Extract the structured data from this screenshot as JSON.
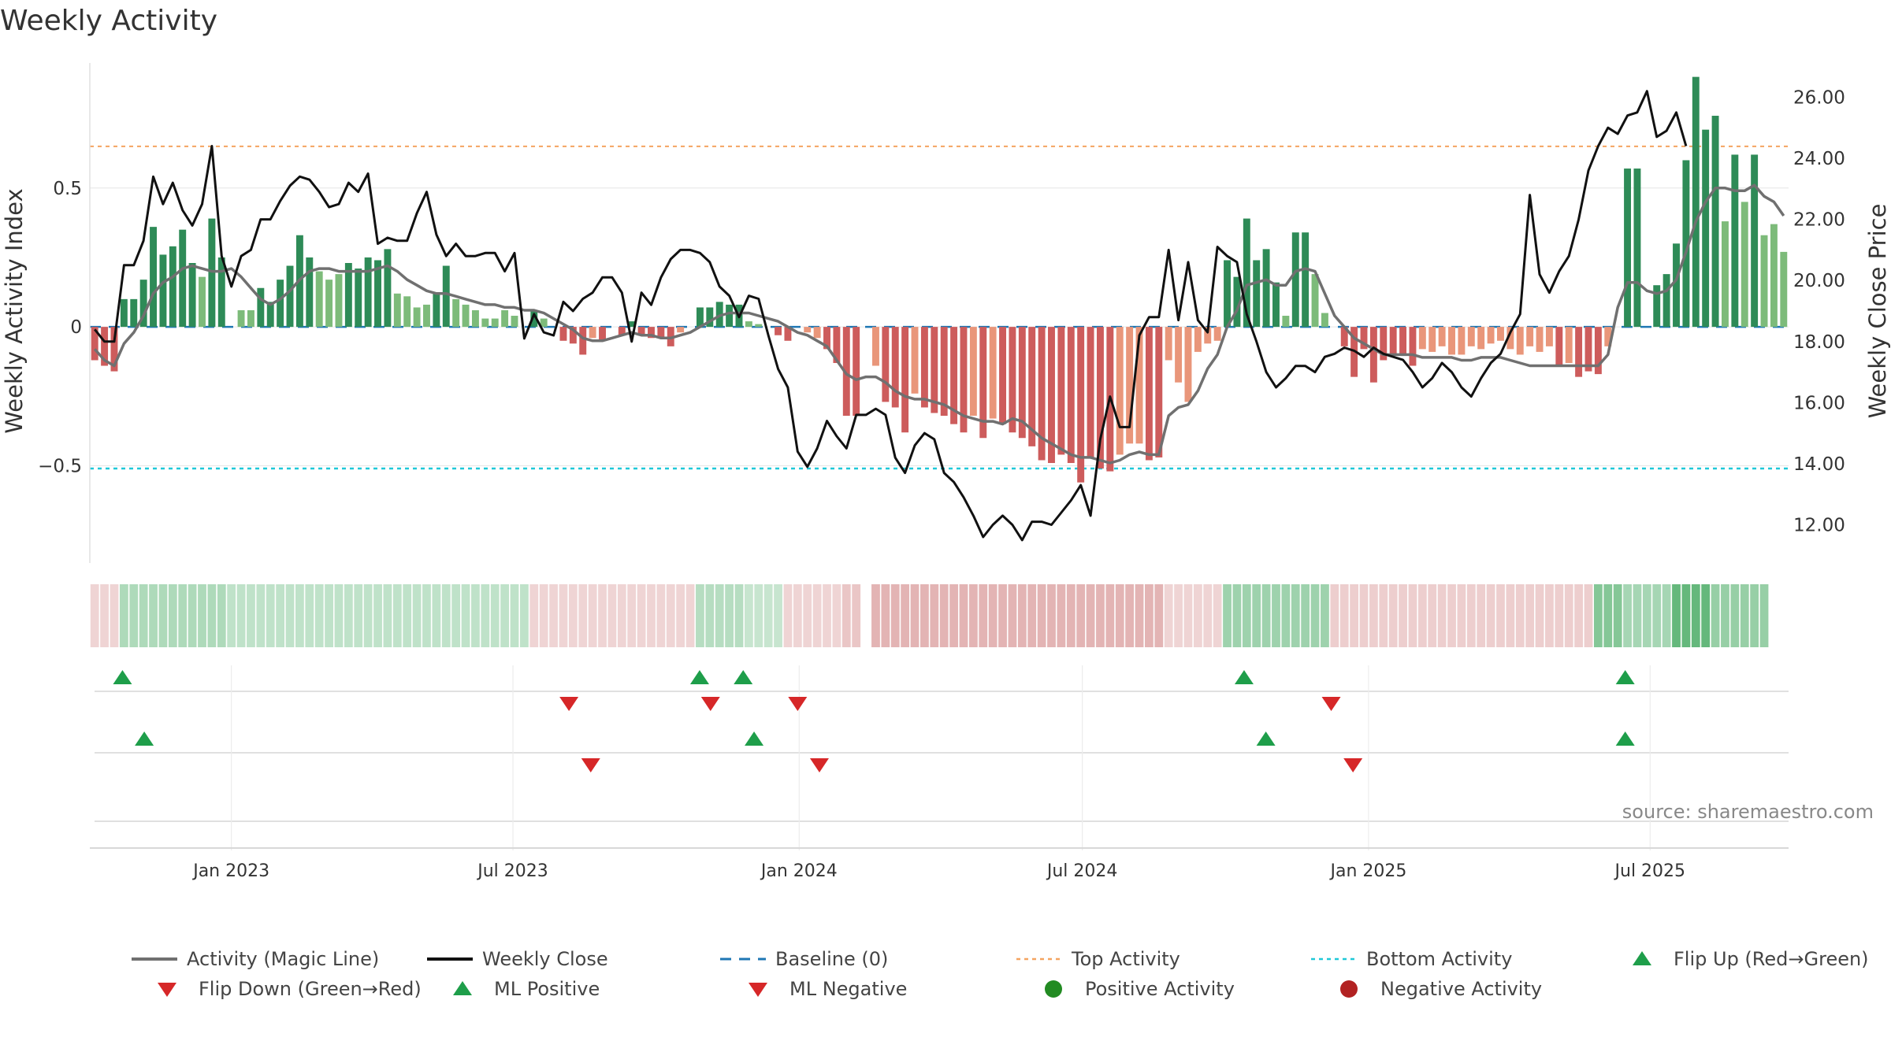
{
  "title": "Weekly Activity",
  "source": "source: sharemaestro.com",
  "colors": {
    "strong_green": "#2e8b57",
    "light_green": "#7dbb7a",
    "strong_red": "#cd5c5c",
    "light_red": "#e9967a",
    "magic_line": "#707070",
    "close_line": "#111111",
    "baseline": "#1f77b4",
    "top_line": "#f4a460",
    "bottom_line": "#1fc8d8",
    "flip_up": "#1e9e4a",
    "flip_down": "#d62728",
    "heat_green": "#3ea65b",
    "heat_red": "#c86a6a"
  },
  "legend": [
    {
      "label": "Activity (Magic Line)",
      "icon": "grey-line"
    },
    {
      "label": "Weekly Close",
      "icon": "black-line"
    },
    {
      "label": "Baseline (0)",
      "icon": "blue-dashed-line"
    },
    {
      "label": "Top Activity",
      "icon": "orange-dotted-line"
    },
    {
      "label": "Bottom Activity",
      "icon": "cyan-dotted-line"
    },
    {
      "label": "Flip Up (Red→Green)",
      "icon": "green-triangle-up"
    },
    {
      "label": "Flip Down (Green→Red)",
      "icon": "red-triangle-down"
    },
    {
      "label": "ML Positive",
      "icon": "green-triangle-up"
    },
    {
      "label": "ML Negative",
      "icon": "red-triangle-down"
    },
    {
      "label": "Positive Activity",
      "icon": "green-circle"
    },
    {
      "label": "Negative Activity",
      "icon": "red-circle"
    }
  ],
  "chart_data": {
    "type": "bar",
    "xlabel": "",
    "ylabel": "Weekly Activity Index",
    "y2label": "Weekly Close Price",
    "ylim": [
      -0.85,
      0.95
    ],
    "y2lim": [
      10.75,
      27.12
    ],
    "yticks": [
      {
        "label": "0.5",
        "value": 0.5
      },
      {
        "label": "0",
        "value": 0
      },
      {
        "label": "−0.5",
        "value": -0.5
      }
    ],
    "y2ticks": [
      {
        "label": "12.00",
        "value": 12
      },
      {
        "label": "14.00",
        "value": 14
      },
      {
        "label": "16.00",
        "value": 16
      },
      {
        "label": "18.00",
        "value": 18
      },
      {
        "label": "20.00",
        "value": 20
      },
      {
        "label": "22.00",
        "value": 22
      },
      {
        "label": "24.00",
        "value": 24
      },
      {
        "label": "26.00",
        "value": 26
      }
    ],
    "x_start": "2022-10-02",
    "x_end": "2025-09-28",
    "xticks": [
      {
        "label": "Jan 2023",
        "date": "2023-01-01"
      },
      {
        "label": "Jul 2023",
        "date": "2023-07-01"
      },
      {
        "label": "Jan 2024",
        "date": "2024-01-01"
      },
      {
        "label": "Jul 2024",
        "date": "2024-07-01"
      },
      {
        "label": "Jan 2025",
        "date": "2025-01-01"
      },
      {
        "label": "Jul 2025",
        "date": "2025-07-01"
      }
    ],
    "top_activity": 0.65,
    "bottom_activity": -0.51,
    "baseline": 0,
    "grid": "horizontal",
    "legend_position": "bottom",
    "series": [
      {
        "name": "Weekly Activity Index",
        "kind": "bar",
        "values": [
          -0.12,
          -0.14,
          -0.16,
          0.1,
          0.1,
          0.17,
          0.36,
          0.26,
          0.29,
          0.35,
          0.23,
          0.18,
          0.39,
          0.25,
          0,
          0.06,
          0.06,
          0.14,
          0.09,
          0.17,
          0.22,
          0.33,
          0.25,
          0.2,
          0.17,
          0.19,
          0.23,
          0.21,
          0.25,
          0.24,
          0.28,
          0.12,
          0.11,
          0.07,
          0.08,
          0.12,
          0.22,
          0.1,
          0.08,
          0.06,
          0.03,
          0.03,
          0.06,
          0.04,
          0,
          0.06,
          0.03,
          0,
          -0.05,
          -0.06,
          -0.1,
          -0.04,
          -0.05,
          0,
          -0.03,
          0.02,
          -0.03,
          -0.04,
          -0.04,
          -0.07,
          -0.02,
          0,
          0.07,
          0.07,
          0.09,
          0.08,
          0.08,
          0.02,
          0.01,
          0,
          -0.03,
          -0.05,
          0,
          -0.02,
          -0.04,
          -0.08,
          -0.13,
          -0.32,
          -0.32,
          0,
          -0.14,
          -0.27,
          -0.29,
          -0.38,
          -0.24,
          -0.29,
          -0.31,
          -0.32,
          -0.35,
          -0.38,
          -0.32,
          -0.4,
          -0.33,
          -0.35,
          -0.38,
          -0.4,
          -0.43,
          -0.48,
          -0.49,
          -0.46,
          -0.49,
          -0.56,
          -0.47,
          -0.51,
          -0.52,
          -0.46,
          -0.42,
          -0.42,
          -0.48,
          -0.47,
          -0.12,
          -0.2,
          -0.27,
          -0.09,
          -0.06,
          -0.05,
          0.24,
          0.18,
          0.39,
          0.24,
          0.28,
          0.16,
          0.04,
          0.34,
          0.34,
          0.19,
          0.05,
          0,
          -0.07,
          -0.18,
          -0.08,
          -0.2,
          -0.12,
          -0.1,
          -0.1,
          -0.14,
          -0.08,
          -0.09,
          -0.07,
          -0.1,
          -0.1,
          -0.07,
          -0.08,
          -0.06,
          -0.05,
          -0.08,
          -0.1,
          -0.07,
          -0.09,
          -0.07,
          -0.14,
          -0.13,
          -0.18,
          -0.16,
          -0.17,
          -0.07,
          0,
          0.57,
          0.57,
          0,
          0.15,
          0.19,
          0.3,
          0.6,
          0.9,
          0.71,
          0.76,
          0.38,
          0.62,
          0.45,
          0.62,
          0.33,
          0.37,
          0.27
        ]
      },
      {
        "name": "Activity (Magic Line)",
        "kind": "line",
        "values": [
          -0.08,
          -0.12,
          -0.14,
          -0.06,
          -0.02,
          0.04,
          0.12,
          0.16,
          0.18,
          0.21,
          0.22,
          0.21,
          0.2,
          0.2,
          0.21,
          0.18,
          0.14,
          0.1,
          0.08,
          0.1,
          0.13,
          0.17,
          0.2,
          0.21,
          0.21,
          0.2,
          0.2,
          0.2,
          0.2,
          0.21,
          0.22,
          0.2,
          0.17,
          0.15,
          0.13,
          0.12,
          0.12,
          0.11,
          0.1,
          0.09,
          0.08,
          0.08,
          0.07,
          0.07,
          0.06,
          0.06,
          0.05,
          0.03,
          0.01,
          -0.01,
          -0.04,
          -0.05,
          -0.05,
          -0.04,
          -0.03,
          -0.02,
          -0.03,
          -0.03,
          -0.04,
          -0.04,
          -0.03,
          -0.02,
          0,
          0.02,
          0.04,
          0.05,
          0.05,
          0.05,
          0.04,
          0.03,
          0.02,
          0,
          -0.02,
          -0.03,
          -0.05,
          -0.07,
          -0.12,
          -0.17,
          -0.19,
          -0.18,
          -0.18,
          -0.2,
          -0.23,
          -0.25,
          -0.26,
          -0.26,
          -0.27,
          -0.28,
          -0.3,
          -0.32,
          -0.33,
          -0.34,
          -0.34,
          -0.35,
          -0.33,
          -0.34,
          -0.37,
          -0.4,
          -0.42,
          -0.44,
          -0.46,
          -0.47,
          -0.47,
          -0.48,
          -0.49,
          -0.48,
          -0.46,
          -0.45,
          -0.46,
          -0.46,
          -0.32,
          -0.29,
          -0.28,
          -0.23,
          -0.15,
          -0.1,
          0,
          0.06,
          0.15,
          0.16,
          0.17,
          0.15,
          0.15,
          0.2,
          0.21,
          0.2,
          0.12,
          0.04,
          0,
          -0.04,
          -0.06,
          -0.08,
          -0.1,
          -0.1,
          -0.1,
          -0.1,
          -0.11,
          -0.11,
          -0.11,
          -0.11,
          -0.12,
          -0.12,
          -0.11,
          -0.11,
          -0.11,
          -0.12,
          -0.13,
          -0.14,
          -0.14,
          -0.14,
          -0.14,
          -0.14,
          -0.14,
          -0.14,
          -0.14,
          -0.1,
          0.07,
          0.16,
          0.16,
          0.13,
          0.12,
          0.13,
          0.17,
          0.27,
          0.38,
          0.45,
          0.5,
          0.5,
          0.49,
          0.49,
          0.51,
          0.47,
          0.45,
          0.4
        ]
      },
      {
        "name": "Weekly Close",
        "kind": "line",
        "axis": "right",
        "values": [
          18.4,
          18.0,
          18.0,
          20.5,
          20.5,
          21.3,
          23.4,
          22.5,
          23.2,
          22.3,
          21.8,
          22.5,
          24.4,
          20.8,
          19.8,
          20.8,
          21.0,
          22.0,
          22.0,
          22.6,
          23.1,
          23.4,
          23.3,
          22.9,
          22.4,
          22.5,
          23.2,
          22.9,
          23.5,
          21.2,
          21.4,
          21.3,
          21.3,
          22.2,
          22.9,
          21.5,
          20.8,
          21.2,
          20.8,
          20.8,
          20.9,
          20.9,
          20.3,
          20.9,
          18.1,
          18.9,
          18.3,
          18.2,
          19.3,
          19.0,
          19.4,
          19.6,
          20.1,
          20.1,
          19.6,
          18.0,
          19.6,
          19.2,
          20.1,
          20.7,
          21.0,
          21.0,
          20.9,
          20.6,
          19.8,
          19.5,
          18.8,
          19.5,
          19.4,
          18.2,
          17.1,
          16.5,
          14.4,
          13.9,
          14.5,
          15.4,
          14.9,
          14.5,
          15.6,
          15.6,
          15.8,
          15.6,
          14.2,
          13.7,
          14.6,
          15.0,
          14.8,
          13.7,
          13.4,
          12.9,
          12.3,
          11.6,
          12.0,
          12.3,
          12.0,
          11.5,
          12.1,
          12.1,
          12.0,
          12.4,
          12.8,
          13.3,
          12.3,
          14.8,
          16.2,
          15.2,
          15.2,
          18.2,
          18.8,
          18.8,
          21.0,
          18.7,
          20.6,
          18.7,
          18.3,
          21.1,
          20.8,
          20.6,
          18.9,
          18.0,
          17.0,
          16.5,
          16.8,
          17.2,
          17.2,
          17.0,
          17.5,
          17.6,
          17.8,
          17.7,
          17.5,
          17.8,
          17.6,
          17.5,
          17.4,
          17.0,
          16.5,
          16.8,
          17.3,
          17.0,
          16.5,
          16.2,
          16.8,
          17.3,
          17.6,
          18.3,
          18.9,
          22.8,
          20.2,
          19.6,
          20.3,
          20.8,
          22.0,
          23.6,
          24.4,
          25.0,
          24.8,
          25.4,
          25.5,
          26.2,
          24.7,
          24.9,
          25.5,
          24.4
        ]
      }
    ],
    "flip_up_markers": [
      "2022-10-23",
      "2023-10-29",
      "2023-11-26",
      "2024-10-13",
      "2025-06-15"
    ],
    "flip_down_markers": [
      "2023-08-06",
      "2023-11-05",
      "2023-12-31",
      "2024-12-08"
    ],
    "ml_positive_markers": [
      "2022-11-06",
      "2023-12-03",
      "2024-10-27",
      "2025-06-15"
    ],
    "ml_negative_markers": [
      "2023-08-20",
      "2024-01-14",
      "2024-12-22"
    ],
    "heat_strip": {
      "name": "Activity Heat Strip",
      "levels": [
        -0.2,
        -0.2,
        -0.2,
        0.35,
        0.35,
        0.35,
        0.35,
        0.35,
        0.35,
        0.35,
        0.35,
        0.35,
        0.35,
        0.35,
        0.25,
        0.25,
        0.25,
        0.25,
        0.25,
        0.25,
        0.25,
        0.25,
        0.25,
        0.25,
        0.25,
        0.25,
        0.25,
        0.25,
        0.25,
        0.25,
        0.25,
        0.25,
        0.25,
        0.25,
        0.25,
        0.25,
        0.25,
        0.25,
        0.25,
        0.25,
        0.25,
        0.25,
        0.25,
        0.25,
        0.25,
        -0.2,
        -0.2,
        -0.2,
        -0.2,
        -0.2,
        -0.2,
        -0.2,
        -0.2,
        -0.2,
        -0.2,
        -0.2,
        -0.2,
        -0.2,
        -0.2,
        -0.2,
        -0.2,
        -0.2,
        0.3,
        0.3,
        0.3,
        0.3,
        0.3,
        0.2,
        0.2,
        0.2,
        0.2,
        -0.2,
        -0.2,
        -0.2,
        -0.2,
        -0.2,
        -0.2,
        -0.3,
        -0.3,
        0,
        -0.45,
        -0.45,
        -0.45,
        -0.45,
        -0.45,
        -0.45,
        -0.45,
        -0.45,
        -0.45,
        -0.45,
        -0.45,
        -0.45,
        -0.45,
        -0.45,
        -0.45,
        -0.45,
        -0.45,
        -0.45,
        -0.45,
        -0.45,
        -0.45,
        -0.45,
        -0.45,
        -0.45,
        -0.45,
        -0.45,
        -0.45,
        -0.45,
        -0.45,
        -0.45,
        -0.2,
        -0.2,
        -0.2,
        -0.2,
        -0.2,
        -0.2,
        0.45,
        0.45,
        0.45,
        0.45,
        0.45,
        0.45,
        0.45,
        0.45,
        0.45,
        0.45,
        0.45,
        -0.25,
        -0.25,
        -0.25,
        -0.25,
        -0.25,
        -0.25,
        -0.25,
        -0.25,
        -0.25,
        -0.25,
        -0.25,
        -0.25,
        -0.25,
        -0.25,
        -0.25,
        -0.25,
        -0.25,
        -0.25,
        -0.25,
        -0.25,
        -0.25,
        -0.25,
        -0.25,
        -0.25,
        -0.25,
        -0.25,
        -0.25,
        0.6,
        0.6,
        0.6,
        0.4,
        0.4,
        0.4,
        0.4,
        0.4,
        0.8,
        0.8,
        0.8,
        0.8,
        0.5,
        0.5,
        0.5,
        0.5,
        0.5,
        0.5
      ]
    }
  }
}
